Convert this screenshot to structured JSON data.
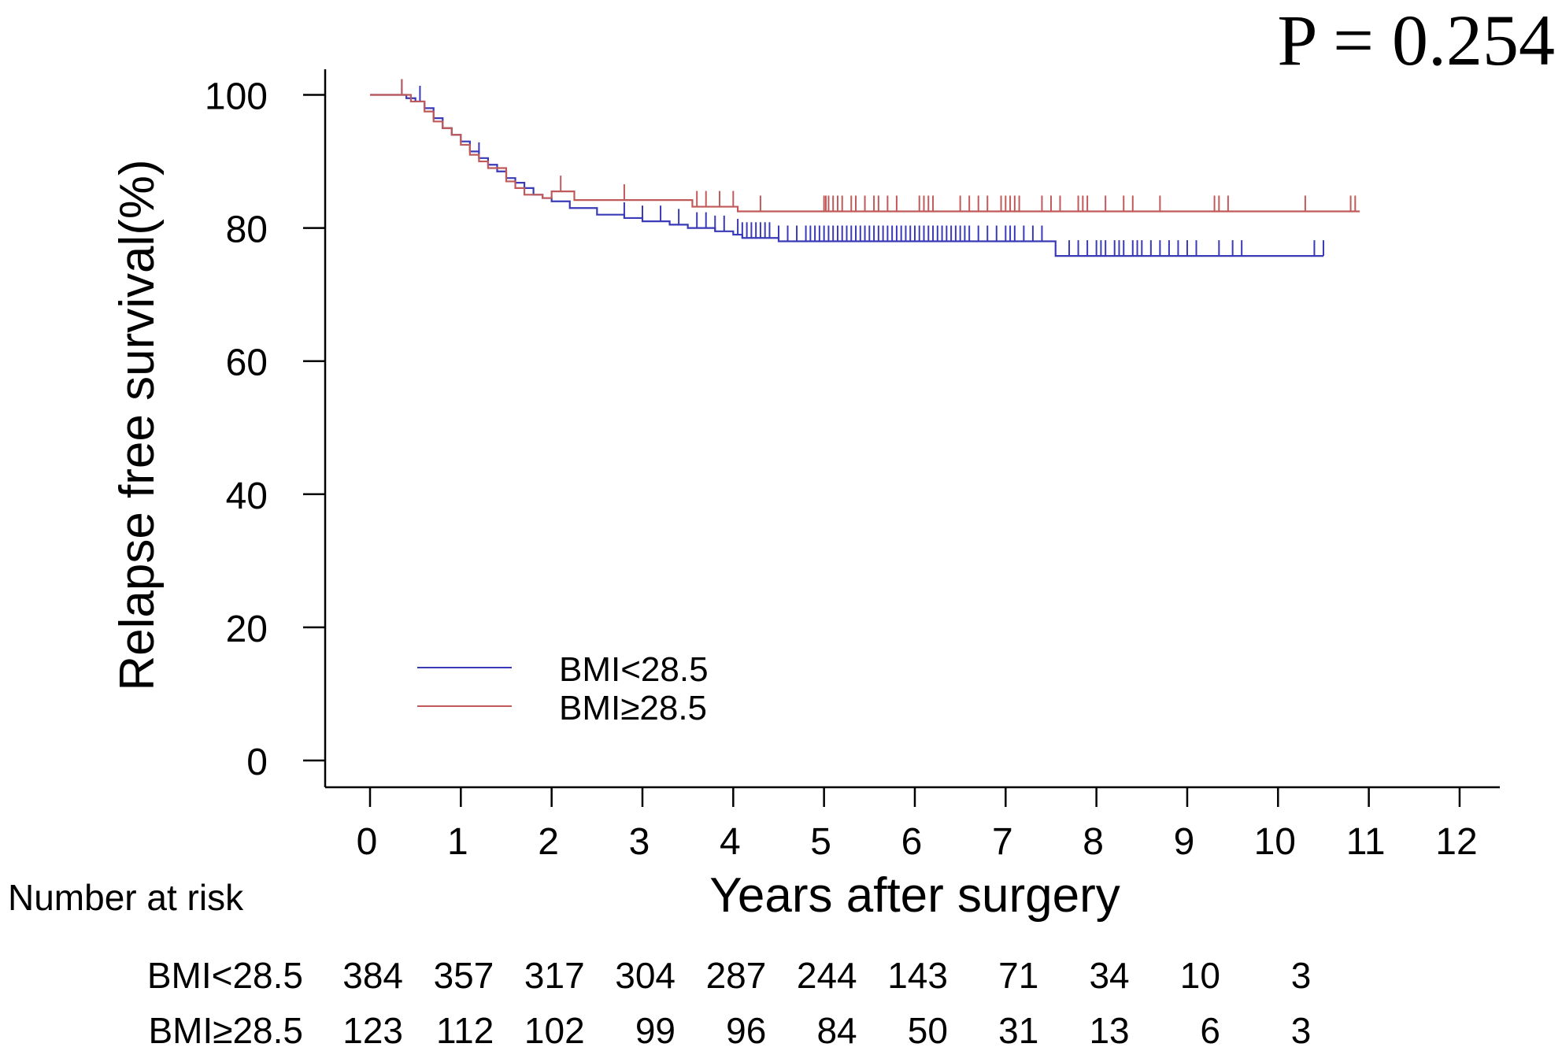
{
  "chart_data": {
    "type": "line",
    "subtype": "kaplan-meier",
    "annotation": "P = 0.254",
    "xlabel": "Years after surgery",
    "ylabel": "Relapse free survival(%)",
    "xlim": [
      0,
      12
    ],
    "ylim": [
      0,
      100
    ],
    "x_ticks": [
      0,
      1,
      2,
      3,
      4,
      5,
      6,
      7,
      8,
      9,
      10,
      11,
      12
    ],
    "y_ticks": [
      0,
      20,
      40,
      60,
      80,
      100
    ],
    "grid": false,
    "legend_position": "bottom-left",
    "series": [
      {
        "name": "BMI<28.5",
        "color": "#3a3ab8",
        "steps": [
          [
            0,
            100
          ],
          [
            0.3,
            100
          ],
          [
            0.4,
            99.5
          ],
          [
            0.5,
            99
          ],
          [
            0.6,
            98
          ],
          [
            0.7,
            96.5
          ],
          [
            0.8,
            95
          ],
          [
            0.9,
            94
          ],
          [
            1.0,
            93
          ],
          [
            1.1,
            91.5
          ],
          [
            1.2,
            90.5
          ],
          [
            1.3,
            89.5
          ],
          [
            1.4,
            88.5
          ],
          [
            1.5,
            87.5
          ],
          [
            1.6,
            86.8
          ],
          [
            1.7,
            86
          ],
          [
            1.8,
            85
          ],
          [
            1.9,
            84.5
          ],
          [
            2.0,
            84
          ],
          [
            2.2,
            83
          ],
          [
            2.5,
            82
          ],
          [
            2.8,
            81.5
          ],
          [
            3.0,
            81
          ],
          [
            3.3,
            80.5
          ],
          [
            3.5,
            80
          ],
          [
            3.8,
            79.5
          ],
          [
            4.0,
            79
          ],
          [
            4.1,
            78.5
          ],
          [
            4.5,
            78
          ],
          [
            7.5,
            78
          ],
          [
            7.55,
            75.8
          ],
          [
            10.5,
            75.8
          ]
        ],
        "censor_x": [
          0.35,
          0.55,
          1.2,
          2.8,
          3.0,
          3.2,
          3.4,
          3.6,
          3.7,
          3.8,
          3.9,
          4.05,
          4.1,
          4.15,
          4.2,
          4.25,
          4.3,
          4.35,
          4.4,
          4.5,
          4.6,
          4.7,
          4.8,
          4.85,
          4.9,
          4.95,
          5.0,
          5.05,
          5.1,
          5.15,
          5.2,
          5.25,
          5.3,
          5.35,
          5.4,
          5.45,
          5.5,
          5.55,
          5.6,
          5.65,
          5.7,
          5.75,
          5.8,
          5.85,
          5.9,
          5.95,
          6.0,
          6.05,
          6.1,
          6.15,
          6.2,
          6.25,
          6.3,
          6.35,
          6.4,
          6.45,
          6.5,
          6.55,
          6.6,
          6.7,
          6.8,
          6.9,
          7.0,
          7.05,
          7.1,
          7.2,
          7.3,
          7.4,
          7.7,
          7.8,
          7.9,
          8.0,
          8.05,
          8.1,
          8.2,
          8.25,
          8.3,
          8.4,
          8.45,
          8.5,
          8.6,
          8.7,
          8.8,
          8.9,
          9.0,
          9.1,
          9.35,
          9.5,
          9.6,
          10.4,
          10.5
        ]
      },
      {
        "name": "BMI≥28.5",
        "color": "#c05a5a",
        "steps": [
          [
            0,
            100
          ],
          [
            0.3,
            100
          ],
          [
            0.45,
            99
          ],
          [
            0.6,
            97.5
          ],
          [
            0.7,
            96
          ],
          [
            0.8,
            95
          ],
          [
            0.9,
            94
          ],
          [
            1.0,
            92.5
          ],
          [
            1.1,
            91
          ],
          [
            1.2,
            90
          ],
          [
            1.3,
            89
          ],
          [
            1.5,
            87
          ],
          [
            1.6,
            86
          ],
          [
            1.7,
            85
          ],
          [
            1.9,
            84.5
          ],
          [
            2.0,
            85.5
          ],
          [
            2.25,
            84.2
          ],
          [
            3.55,
            83.2
          ],
          [
            4.05,
            82.5
          ],
          [
            10.9,
            82.5
          ]
        ],
        "censor_x": [
          0.35,
          2.1,
          2.8,
          3.6,
          3.7,
          3.85,
          4.0,
          4.3,
          5.0,
          5.02,
          5.05,
          5.1,
          5.15,
          5.2,
          5.3,
          5.35,
          5.45,
          5.55,
          5.6,
          5.7,
          5.8,
          6.05,
          6.1,
          6.15,
          6.2,
          6.5,
          6.6,
          6.7,
          6.8,
          6.95,
          7.0,
          7.05,
          7.1,
          7.15,
          7.4,
          7.5,
          7.6,
          7.8,
          7.85,
          7.9,
          8.1,
          8.3,
          8.4,
          8.7,
          9.3,
          9.35,
          9.45,
          10.3,
          10.8,
          10.85
        ]
      }
    ]
  },
  "risk_table": {
    "title": "Number at risk",
    "rows": [
      {
        "label": "BMI<28.5",
        "values": [
          "384",
          "357",
          "317",
          "304",
          "287",
          "244",
          "143",
          "71",
          "34",
          "10",
          "3"
        ]
      },
      {
        "label": "BMI≥28.5",
        "values": [
          "123",
          "112",
          "102",
          "99",
          "96",
          "84",
          "50",
          "31",
          "13",
          "6",
          "3"
        ]
      }
    ]
  }
}
